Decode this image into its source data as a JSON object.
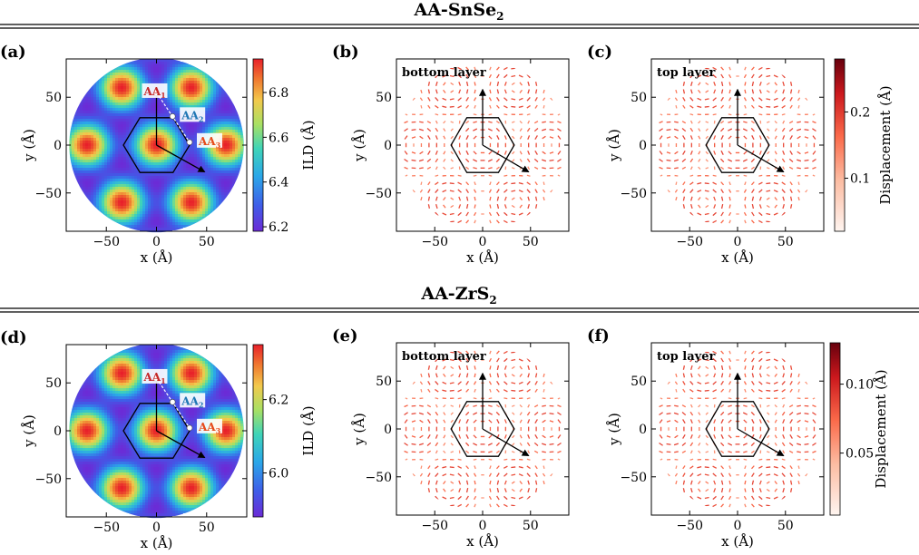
{
  "sections": [
    {
      "title_main": "AA-SnSe",
      "title_sub": "2"
    },
    {
      "title_main": "AA-ZrS",
      "title_sub": "2"
    }
  ],
  "chart_data": [
    {
      "id": "a",
      "type": "heatmap",
      "panel_label": "(a)",
      "xlabel": "x (Å)",
      "ylabel": "y (Å)",
      "xlim": [
        -90,
        90
      ],
      "ylim": [
        -90,
        90
      ],
      "xticks": [
        -50,
        0,
        50
      ],
      "yticks": [
        -50,
        0,
        50
      ],
      "colorbar": {
        "label": "ILD (Å)",
        "ticks": [
          "6.2",
          "6.4",
          "6.6",
          "6.8"
        ],
        "range": [
          6.18,
          6.95
        ],
        "cmap": "rainbow"
      },
      "annotations": [
        {
          "label": "AA",
          "sub": "1",
          "x": 0,
          "y": 55,
          "color": "#c62828"
        },
        {
          "label": "AA",
          "sub": "2",
          "x": 16,
          "y": 30,
          "color": "#1f77b4"
        },
        {
          "label": "AA",
          "sub": "3",
          "x": 33,
          "y": 3,
          "color": "#e64a19"
        }
      ]
    },
    {
      "id": "b",
      "type": "scatter",
      "panel_label": "(b)",
      "inset_label": "bottom layer",
      "xlabel": "x (Å)",
      "ylabel": "y (Å)",
      "xlim": [
        -90,
        90
      ],
      "ylim": [
        -90,
        90
      ],
      "xticks": [
        -50,
        0,
        50
      ],
      "yticks": [
        -50,
        0,
        50
      ]
    },
    {
      "id": "c",
      "type": "scatter",
      "panel_label": "(c)",
      "inset_label": "top layer",
      "xlabel": "x (Å)",
      "ylabel": "y (Å)",
      "xlim": [
        -90,
        90
      ],
      "ylim": [
        -90,
        90
      ],
      "xticks": [
        -50,
        0,
        50
      ],
      "yticks": [
        -50,
        0,
        50
      ],
      "colorbar": {
        "label": "Displacement (Å)",
        "ticks": [
          "0.1",
          "0.2"
        ],
        "range": [
          0.02,
          0.28
        ],
        "cmap": "Reds"
      }
    },
    {
      "id": "d",
      "type": "heatmap",
      "panel_label": "(d)",
      "xlabel": "x (Å)",
      "ylabel": "y (Å)",
      "xlim": [
        -90,
        90
      ],
      "ylim": [
        -90,
        90
      ],
      "xticks": [
        -50,
        0,
        50
      ],
      "yticks": [
        -50,
        0,
        50
      ],
      "colorbar": {
        "label": "ILD (Å)",
        "ticks": [
          "6.0",
          "6.2"
        ],
        "range": [
          5.88,
          6.35
        ],
        "cmap": "rainbow"
      },
      "annotations": [
        {
          "label": "AA",
          "sub": "1",
          "x": 0,
          "y": 55,
          "color": "#c62828"
        },
        {
          "label": "AA",
          "sub": "2",
          "x": 16,
          "y": 30,
          "color": "#1f77b4"
        },
        {
          "label": "AA",
          "sub": "3",
          "x": 33,
          "y": 3,
          "color": "#e64a19"
        }
      ]
    },
    {
      "id": "e",
      "type": "scatter",
      "panel_label": "(e)",
      "inset_label": "bottom layer",
      "xlabel": "x (Å)",
      "ylabel": "y (Å)",
      "xlim": [
        -90,
        90
      ],
      "ylim": [
        -90,
        90
      ],
      "xticks": [
        -50,
        0,
        50
      ],
      "yticks": [
        -50,
        0,
        50
      ]
    },
    {
      "id": "f",
      "type": "scatter",
      "panel_label": "(f)",
      "inset_label": "top layer",
      "xlabel": "x (Å)",
      "ylabel": "y (Å)",
      "xlim": [
        -90,
        90
      ],
      "ylim": [
        -90,
        90
      ],
      "xticks": [
        -50,
        0,
        50
      ],
      "yticks": [
        -50,
        0,
        50
      ],
      "colorbar": {
        "label": "Displacement (Å)",
        "ticks": [
          "0.05",
          "0.10"
        ],
        "range": [
          0.005,
          0.13
        ],
        "cmap": "Reds"
      }
    }
  ]
}
